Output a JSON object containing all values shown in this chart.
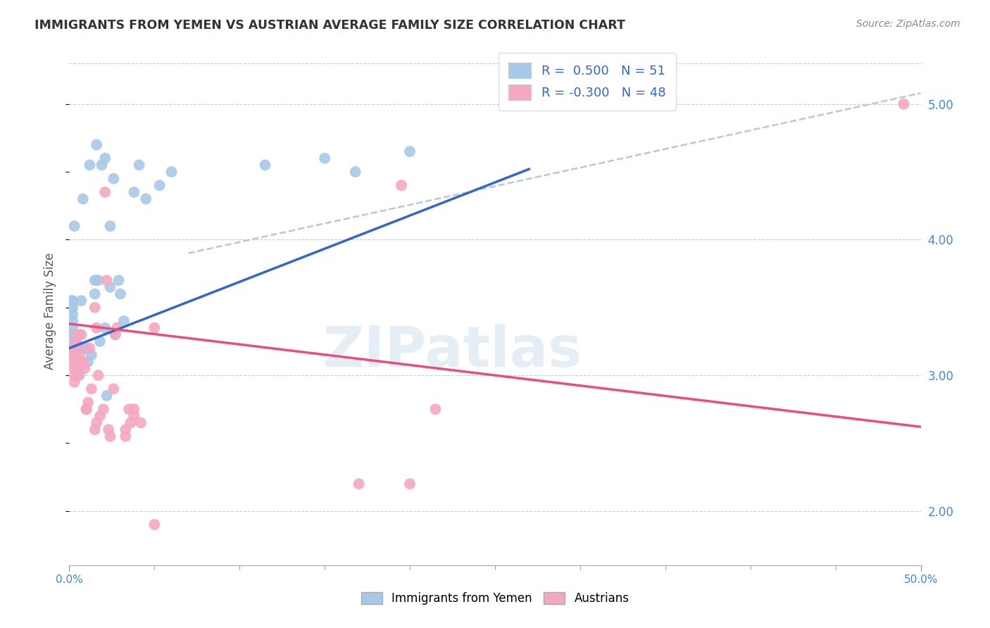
{
  "title": "IMMIGRANTS FROM YEMEN VS AUSTRIAN AVERAGE FAMILY SIZE CORRELATION CHART",
  "source": "Source: ZipAtlas.com",
  "ylabel": "Average Family Size",
  "y_ticks_right": [
    2.0,
    3.0,
    4.0,
    5.0
  ],
  "xlim": [
    0.0,
    0.5
  ],
  "ylim": [
    1.6,
    5.35
  ],
  "legend_blue_r": "0.500",
  "legend_blue_n": "51",
  "legend_pink_r": "-0.300",
  "legend_pink_n": "48",
  "blue_color": "#a8c8e8",
  "pink_color": "#f4a8c0",
  "blue_line_color": "#3366cc",
  "pink_line_color": "#e8507a",
  "dashed_line_color": "#b8c8d8",
  "watermark": "ZIPatlas",
  "blue_dots": [
    [
      0.001,
      3.3
    ],
    [
      0.001,
      3.55
    ],
    [
      0.001,
      3.5
    ],
    [
      0.002,
      3.55
    ],
    [
      0.002,
      3.5
    ],
    [
      0.002,
      3.45
    ],
    [
      0.002,
      3.4
    ],
    [
      0.002,
      3.35
    ],
    [
      0.003,
      4.1
    ],
    [
      0.003,
      3.3
    ],
    [
      0.003,
      3.2
    ],
    [
      0.003,
      3.25
    ],
    [
      0.004,
      3.15
    ],
    [
      0.004,
      3.25
    ],
    [
      0.004,
      3.1
    ],
    [
      0.005,
      3.05
    ],
    [
      0.005,
      3.05
    ],
    [
      0.006,
      3.0
    ],
    [
      0.006,
      3.3
    ],
    [
      0.007,
      3.55
    ],
    [
      0.008,
      4.3
    ],
    [
      0.009,
      3.2
    ],
    [
      0.01,
      3.2
    ],
    [
      0.011,
      3.1
    ],
    [
      0.012,
      4.55
    ],
    [
      0.013,
      3.15
    ],
    [
      0.015,
      3.6
    ],
    [
      0.015,
      3.7
    ],
    [
      0.016,
      4.7
    ],
    [
      0.017,
      3.7
    ],
    [
      0.018,
      3.25
    ],
    [
      0.019,
      4.55
    ],
    [
      0.021,
      3.35
    ],
    [
      0.021,
      4.6
    ],
    [
      0.022,
      2.85
    ],
    [
      0.024,
      3.65
    ],
    [
      0.024,
      4.1
    ],
    [
      0.026,
      4.45
    ],
    [
      0.027,
      3.3
    ],
    [
      0.029,
      3.7
    ],
    [
      0.03,
      3.6
    ],
    [
      0.032,
      3.4
    ],
    [
      0.038,
      4.35
    ],
    [
      0.041,
      4.55
    ],
    [
      0.045,
      4.3
    ],
    [
      0.053,
      4.4
    ],
    [
      0.06,
      4.5
    ],
    [
      0.115,
      4.55
    ],
    [
      0.15,
      4.6
    ],
    [
      0.168,
      4.5
    ],
    [
      0.2,
      4.65
    ]
  ],
  "pink_dots": [
    [
      0.001,
      3.2
    ],
    [
      0.002,
      3.15
    ],
    [
      0.002,
      3.1
    ],
    [
      0.003,
      3.05
    ],
    [
      0.003,
      3.0
    ],
    [
      0.003,
      2.95
    ],
    [
      0.004,
      3.3
    ],
    [
      0.004,
      3.25
    ],
    [
      0.005,
      3.2
    ],
    [
      0.005,
      3.0
    ],
    [
      0.006,
      3.15
    ],
    [
      0.007,
      3.3
    ],
    [
      0.007,
      3.1
    ],
    [
      0.008,
      3.1
    ],
    [
      0.009,
      3.05
    ],
    [
      0.01,
      2.75
    ],
    [
      0.01,
      2.75
    ],
    [
      0.011,
      2.8
    ],
    [
      0.012,
      3.2
    ],
    [
      0.013,
      2.9
    ],
    [
      0.015,
      3.5
    ],
    [
      0.015,
      2.6
    ],
    [
      0.016,
      3.35
    ],
    [
      0.016,
      2.65
    ],
    [
      0.017,
      3.0
    ],
    [
      0.018,
      2.7
    ],
    [
      0.02,
      2.75
    ],
    [
      0.021,
      4.35
    ],
    [
      0.022,
      3.7
    ],
    [
      0.023,
      2.6
    ],
    [
      0.024,
      2.55
    ],
    [
      0.026,
      2.9
    ],
    [
      0.027,
      3.3
    ],
    [
      0.028,
      3.35
    ],
    [
      0.033,
      2.6
    ],
    [
      0.033,
      2.55
    ],
    [
      0.035,
      2.75
    ],
    [
      0.036,
      2.65
    ],
    [
      0.038,
      2.7
    ],
    [
      0.038,
      2.75
    ],
    [
      0.042,
      2.65
    ],
    [
      0.05,
      3.35
    ],
    [
      0.05,
      1.9
    ],
    [
      0.17,
      2.2
    ],
    [
      0.195,
      4.4
    ],
    [
      0.2,
      2.2
    ],
    [
      0.215,
      2.75
    ],
    [
      0.49,
      5.0
    ]
  ],
  "blue_trend": [
    0.0,
    0.27,
    3.2,
    4.52
  ],
  "pink_trend": [
    0.0,
    0.5,
    3.38,
    2.62
  ],
  "dash_trend": [
    0.07,
    0.5,
    3.9,
    5.08
  ],
  "x_minor_ticks": [
    0.05,
    0.1,
    0.15,
    0.2,
    0.25,
    0.3,
    0.35,
    0.4,
    0.45
  ]
}
